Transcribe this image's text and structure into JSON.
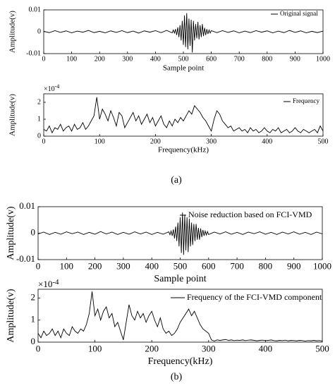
{
  "chart_data": [
    {
      "type": "line",
      "xlabel": "Sample point",
      "ylabel": "Amplitude(v)",
      "xlim": [
        0,
        1000
      ],
      "ylim": [
        -0.01,
        0.01
      ],
      "xticks": [
        0,
        100,
        200,
        300,
        400,
        500,
        600,
        700,
        800,
        900,
        1000
      ],
      "yticks": [
        -0.01,
        0,
        0.01
      ],
      "series": [
        {
          "name": "Original signal",
          "color": "#000000",
          "x": [
            0,
            20,
            40,
            60,
            80,
            100,
            120,
            140,
            160,
            180,
            200,
            220,
            240,
            260,
            280,
            300,
            320,
            340,
            360,
            380,
            400,
            420,
            440,
            460,
            464,
            468,
            472,
            476,
            480,
            484,
            488,
            492,
            496,
            500,
            504,
            508,
            512,
            516,
            520,
            524,
            528,
            532,
            536,
            540,
            544,
            548,
            552,
            556,
            560,
            564,
            568,
            572,
            576,
            580,
            584,
            588,
            592,
            596,
            600,
            620,
            640,
            660,
            680,
            700,
            720,
            740,
            760,
            780,
            800,
            820,
            840,
            860,
            880,
            900,
            920,
            940,
            960,
            980,
            1000
          ],
          "values": [
            0.0002,
            -0.0004,
            0.0005,
            -0.0003,
            0.0004,
            -0.0005,
            0.0003,
            -0.0002,
            0.0006,
            -0.0004,
            0.0002,
            -0.0005,
            0.0004,
            -0.0003,
            0.0005,
            -0.0004,
            0.0003,
            -0.0006,
            0.0004,
            -0.0002,
            0.0005,
            -0.0004,
            0.0006,
            -0.0005,
            0.0008,
            -0.0006,
            0.0012,
            -0.0015,
            0.002,
            -0.0025,
            0.003,
            -0.004,
            0.005,
            -0.006,
            0.0075,
            -0.007,
            0.0085,
            -0.008,
            0.006,
            -0.0065,
            0.0055,
            -0.0095,
            0.005,
            -0.004,
            0.0035,
            -0.003,
            0.0045,
            -0.0035,
            0.003,
            -0.0025,
            0.0035,
            -0.002,
            0.0018,
            -0.0015,
            0.0012,
            -0.001,
            0.0008,
            -0.0006,
            0.0005,
            -0.0004,
            0.0005,
            -0.0003,
            0.0004,
            -0.0005,
            0.0003,
            -0.0004,
            0.0005,
            -0.0002,
            0.0004,
            -0.0005,
            0.0003,
            -0.0004,
            0.0006,
            -0.0003,
            0.0004,
            -0.0005,
            0.0002,
            -0.0004,
            0.0003
          ]
        }
      ]
    },
    {
      "type": "line",
      "xlabel": "Frequency(kHz)",
      "ylabel": "Amplitude(v)",
      "y_scale": {
        "base": "×10",
        "exponent": "-4"
      },
      "xlim": [
        0,
        500
      ],
      "ylim": [
        0,
        2.5
      ],
      "xticks": [
        0,
        100,
        200,
        300,
        400,
        500
      ],
      "yticks": [
        0,
        1,
        2
      ],
      "series": [
        {
          "name": "Frequency",
          "color": "#000000",
          "x": [
            0,
            5,
            10,
            15,
            20,
            25,
            30,
            35,
            40,
            45,
            50,
            55,
            60,
            65,
            70,
            75,
            80,
            85,
            90,
            95,
            100,
            105,
            110,
            115,
            120,
            125,
            130,
            135,
            140,
            145,
            150,
            155,
            160,
            165,
            170,
            175,
            180,
            185,
            190,
            195,
            200,
            205,
            210,
            215,
            220,
            225,
            230,
            235,
            240,
            245,
            250,
            255,
            260,
            265,
            270,
            275,
            280,
            285,
            290,
            295,
            300,
            305,
            310,
            315,
            320,
            325,
            330,
            335,
            340,
            345,
            350,
            355,
            360,
            365,
            370,
            375,
            380,
            385,
            390,
            395,
            400,
            405,
            410,
            415,
            420,
            425,
            430,
            435,
            440,
            445,
            450,
            455,
            460,
            465,
            470,
            475,
            480,
            485,
            490,
            495,
            500
          ],
          "values": [
            0.4,
            0.3,
            0.6,
            0.2,
            0.5,
            0.4,
            0.7,
            0.3,
            0.5,
            0.6,
            0.3,
            0.7,
            0.4,
            0.5,
            0.8,
            0.4,
            0.6,
            0.9,
            1.2,
            2.3,
            1.0,
            1.6,
            1.3,
            0.9,
            1.5,
            1.1,
            0.6,
            1.4,
            1.2,
            0.5,
            0.8,
            1.1,
            1.4,
            0.9,
            1.2,
            0.7,
            1.0,
            1.3,
            0.8,
            1.1,
            0.6,
            0.9,
            1.2,
            0.7,
            0.5,
            0.9,
            0.6,
            1.0,
            0.8,
            1.1,
            0.9,
            1.2,
            1.5,
            1.3,
            1.8,
            1.6,
            1.4,
            1.1,
            0.9,
            0.6,
            0.3,
            1.0,
            1.5,
            1.3,
            0.9,
            0.7,
            0.5,
            0.6,
            0.3,
            0.4,
            0.5,
            0.3,
            0.4,
            0.2,
            0.5,
            0.3,
            0.4,
            0.2,
            0.3,
            0.5,
            0.3,
            0.2,
            0.4,
            0.3,
            0.5,
            0.2,
            0.3,
            0.4,
            0.2,
            0.3,
            0.5,
            0.3,
            0.2,
            0.4,
            0.3,
            0.2,
            0.3,
            0.4,
            0.2,
            0.6,
            0.3
          ]
        }
      ]
    },
    {
      "type": "line",
      "xlabel": "Sample point",
      "ylabel": "Amplitude(v)",
      "xlim": [
        0,
        1000
      ],
      "ylim": [
        -0.01,
        0.01
      ],
      "xticks": [
        0,
        100,
        200,
        300,
        400,
        500,
        600,
        700,
        800,
        900,
        1000
      ],
      "yticks": [
        -0.01,
        0,
        0.01
      ],
      "series": [
        {
          "name": "Noise reduction based on FCI-VMD",
          "color": "#000000",
          "x": [
            0,
            20,
            40,
            60,
            80,
            100,
            120,
            140,
            160,
            180,
            200,
            220,
            240,
            260,
            280,
            300,
            320,
            340,
            360,
            380,
            400,
            420,
            440,
            460,
            464,
            468,
            472,
            476,
            480,
            484,
            488,
            492,
            496,
            500,
            504,
            508,
            512,
            516,
            520,
            524,
            528,
            532,
            536,
            540,
            544,
            548,
            552,
            556,
            560,
            564,
            568,
            572,
            576,
            580,
            584,
            588,
            592,
            596,
            600,
            620,
            640,
            660,
            680,
            700,
            720,
            740,
            760,
            780,
            800,
            820,
            840,
            860,
            880,
            900,
            920,
            940,
            960,
            980,
            1000
          ],
          "values": [
            -0.0003,
            0.0004,
            -0.0005,
            0.0003,
            -0.0004,
            0.0005,
            -0.0002,
            0.0004,
            -0.0005,
            0.0003,
            -0.0004,
            0.0006,
            -0.0003,
            0.0004,
            -0.0005,
            0.0003,
            -0.0004,
            0.0005,
            -0.0003,
            0.0004,
            -0.0005,
            0.0003,
            -0.0004,
            0.0005,
            -0.0006,
            0.0008,
            -0.001,
            0.0014,
            -0.002,
            0.0025,
            -0.003,
            0.004,
            -0.005,
            0.006,
            -0.0075,
            0.0078,
            -0.0082,
            0.007,
            -0.0065,
            0.006,
            -0.0072,
            0.0055,
            -0.005,
            0.004,
            -0.0045,
            0.0035,
            -0.003,
            0.0035,
            -0.0025,
            0.002,
            -0.0025,
            0.0018,
            -0.0015,
            0.0012,
            -0.001,
            0.0008,
            -0.0007,
            0.0006,
            -0.0005,
            0.0004,
            -0.0003,
            0.0005,
            -0.0004,
            0.0003,
            -0.0005,
            0.0004,
            -0.0002,
            0.0005,
            -0.0004,
            0.0003,
            -0.0005,
            0.0004,
            -0.0003,
            0.0005,
            -0.0004,
            0.0003,
            -0.0005,
            0.0004,
            -0.0003
          ]
        }
      ]
    },
    {
      "type": "line",
      "xlabel": "Frequency(kHz)",
      "ylabel": "Amplitude(v)",
      "y_scale": {
        "base": "×10",
        "exponent": "-4"
      },
      "xlim": [
        0,
        500
      ],
      "ylim": [
        0,
        2.4
      ],
      "xticks": [
        0,
        100,
        200,
        300,
        400,
        500
      ],
      "yticks": [
        0,
        1,
        2
      ],
      "series": [
        {
          "name": "Frequency of the FCI-VMD component",
          "color": "#000000",
          "x": [
            0,
            5,
            10,
            15,
            20,
            25,
            30,
            35,
            40,
            45,
            50,
            55,
            60,
            65,
            70,
            75,
            80,
            85,
            90,
            95,
            100,
            105,
            110,
            115,
            120,
            125,
            130,
            135,
            140,
            145,
            150,
            155,
            160,
            165,
            170,
            175,
            180,
            185,
            190,
            195,
            200,
            205,
            210,
            215,
            220,
            225,
            230,
            235,
            240,
            245,
            250,
            255,
            260,
            265,
            270,
            275,
            280,
            285,
            290,
            295,
            300,
            305,
            310,
            315,
            320,
            325,
            330,
            335,
            340,
            345,
            350,
            355,
            360,
            365,
            370,
            375,
            380,
            385,
            390,
            395,
            400,
            405,
            410,
            415,
            420,
            425,
            430,
            435,
            440,
            445,
            450,
            455,
            460,
            465,
            470,
            475,
            480,
            485,
            490,
            495,
            500
          ],
          "values": [
            0.4,
            0.2,
            0.5,
            0.3,
            0.4,
            0.6,
            0.3,
            0.5,
            0.2,
            0.6,
            0.4,
            0.3,
            0.7,
            0.5,
            0.4,
            0.6,
            0.5,
            0.8,
            1.3,
            2.3,
            1.2,
            1.5,
            1.0,
            1.4,
            1.6,
            1.1,
            1.3,
            0.7,
            0.9,
            0.5,
            0.1,
            0.9,
            1.7,
            1.2,
            1.0,
            1.4,
            1.1,
            1.3,
            0.9,
            1.2,
            1.4,
            1.0,
            0.7,
            1.1,
            0.6,
            0.4,
            0.5,
            0.3,
            0.4,
            0.6,
            0.9,
            1.1,
            1.3,
            1.5,
            1.2,
            1.4,
            1.1,
            0.8,
            0.6,
            0.5,
            0.4,
            0.1,
            0.05,
            0.1,
            0.08,
            0.1,
            0.12,
            0.08,
            0.1,
            0.07,
            0.09,
            0.08,
            0.1,
            0.07,
            0.09,
            0.1,
            0.08,
            0.06,
            0.08,
            0.09,
            0.07,
            0.08,
            0.1,
            0.07,
            0.06,
            0.08,
            0.07,
            0.09,
            0.06,
            0.08,
            0.07,
            0.06,
            0.08,
            0.07,
            0.05,
            0.07,
            0.06,
            0.08,
            0.06,
            0.07,
            0.05
          ]
        }
      ]
    }
  ],
  "captions": [
    "(a)",
    "(b)"
  ]
}
